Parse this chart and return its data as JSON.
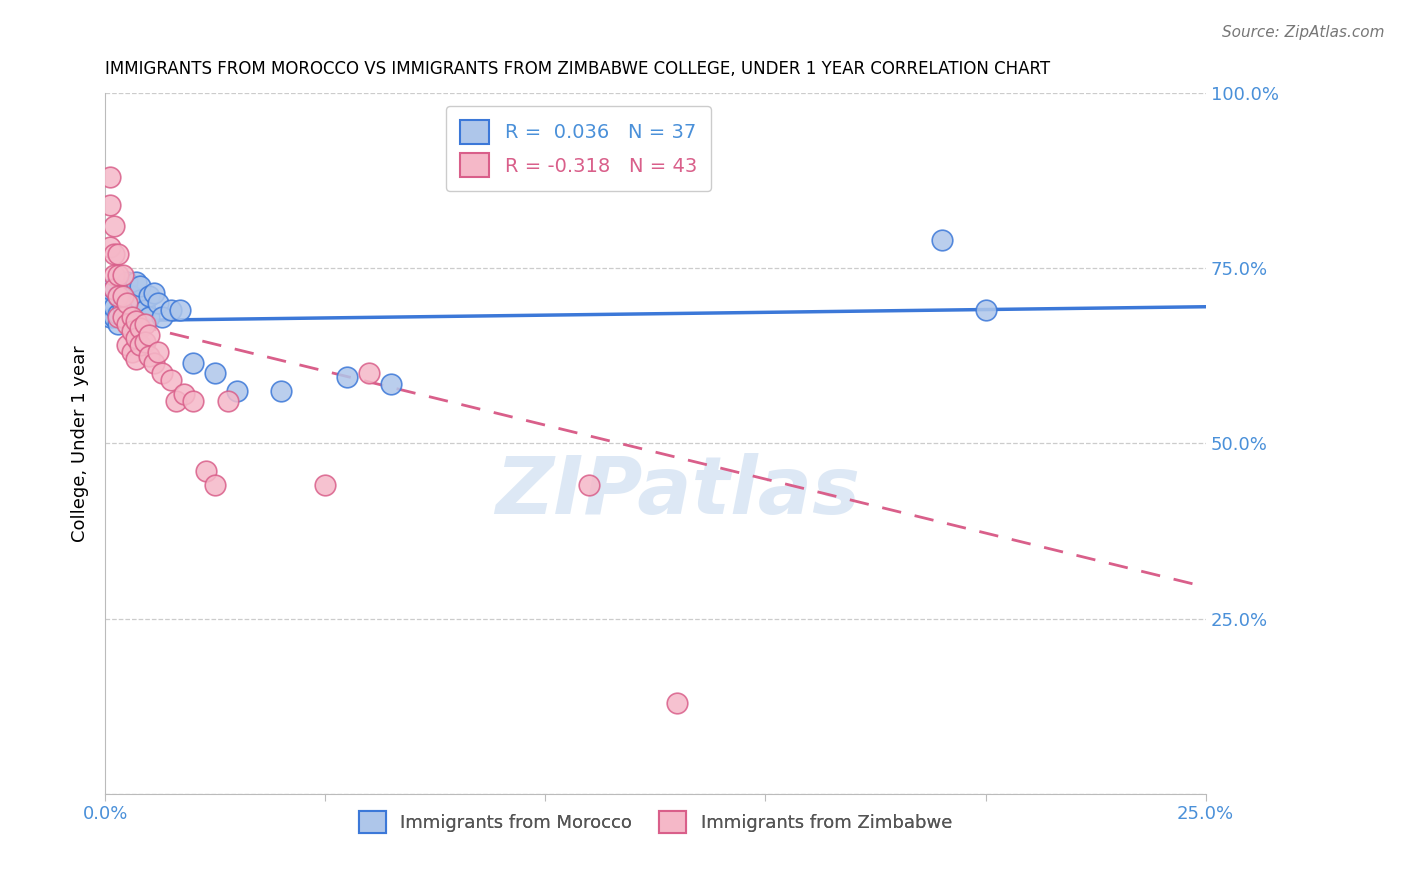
{
  "title": "IMMIGRANTS FROM MOROCCO VS IMMIGRANTS FROM ZIMBABWE COLLEGE, UNDER 1 YEAR CORRELATION CHART",
  "source": "Source: ZipAtlas.com",
  "ylabel": "College, Under 1 year",
  "xlim": [
    0.0,
    0.25
  ],
  "ylim": [
    0.0,
    1.0
  ],
  "legend_R_morocco": "R =  0.036",
  "legend_N_morocco": "N = 37",
  "legend_R_zimbabwe": "R = -0.318",
  "legend_N_zimbabwe": "N = 43",
  "watermark": "ZIPatlas",
  "background_color": "#ffffff",
  "scatter_color_morocco": "#aec6ea",
  "scatter_color_zimbabwe": "#f5b8c8",
  "line_color_morocco": "#3c78d8",
  "line_color_zimbabwe": "#d95f8a",
  "morocco_x": [
    0.001,
    0.001,
    0.001,
    0.002,
    0.002,
    0.002,
    0.003,
    0.003,
    0.003,
    0.004,
    0.004,
    0.005,
    0.005,
    0.005,
    0.006,
    0.006,
    0.007,
    0.007,
    0.007,
    0.008,
    0.008,
    0.009,
    0.01,
    0.01,
    0.011,
    0.012,
    0.013,
    0.015,
    0.017,
    0.02,
    0.025,
    0.03,
    0.04,
    0.055,
    0.065,
    0.19,
    0.2
  ],
  "morocco_y": [
    0.68,
    0.7,
    0.72,
    0.68,
    0.695,
    0.72,
    0.67,
    0.685,
    0.71,
    0.695,
    0.72,
    0.68,
    0.7,
    0.73,
    0.68,
    0.71,
    0.68,
    0.7,
    0.73,
    0.705,
    0.725,
    0.69,
    0.68,
    0.71,
    0.715,
    0.7,
    0.68,
    0.69,
    0.69,
    0.615,
    0.6,
    0.575,
    0.575,
    0.595,
    0.585,
    0.79,
    0.69
  ],
  "zimbabwe_x": [
    0.001,
    0.001,
    0.001,
    0.002,
    0.002,
    0.002,
    0.002,
    0.003,
    0.003,
    0.003,
    0.003,
    0.004,
    0.004,
    0.004,
    0.005,
    0.005,
    0.005,
    0.006,
    0.006,
    0.006,
    0.007,
    0.007,
    0.007,
    0.008,
    0.008,
    0.009,
    0.009,
    0.01,
    0.01,
    0.011,
    0.012,
    0.013,
    0.015,
    0.016,
    0.018,
    0.02,
    0.023,
    0.025,
    0.028,
    0.05,
    0.06,
    0.11,
    0.13
  ],
  "zimbabwe_y": [
    0.88,
    0.84,
    0.78,
    0.81,
    0.77,
    0.74,
    0.72,
    0.77,
    0.74,
    0.71,
    0.68,
    0.74,
    0.71,
    0.68,
    0.7,
    0.67,
    0.64,
    0.68,
    0.66,
    0.63,
    0.675,
    0.65,
    0.62,
    0.665,
    0.64,
    0.67,
    0.645,
    0.655,
    0.625,
    0.615,
    0.63,
    0.6,
    0.59,
    0.56,
    0.57,
    0.56,
    0.46,
    0.44,
    0.56,
    0.44,
    0.6,
    0.44,
    0.13
  ],
  "morocco_line_x": [
    0.0,
    0.25
  ],
  "morocco_line_y": [
    0.675,
    0.695
  ],
  "zimbabwe_line_x": [
    0.0,
    0.25
  ],
  "zimbabwe_line_y": [
    0.68,
    0.295
  ],
  "grid_color": "#cccccc",
  "tick_color": "#4a90d9",
  "tick_fontsize": 13,
  "title_fontsize": 12,
  "ylabel_fontsize": 13,
  "source_fontsize": 11,
  "legend_fontsize": 14
}
